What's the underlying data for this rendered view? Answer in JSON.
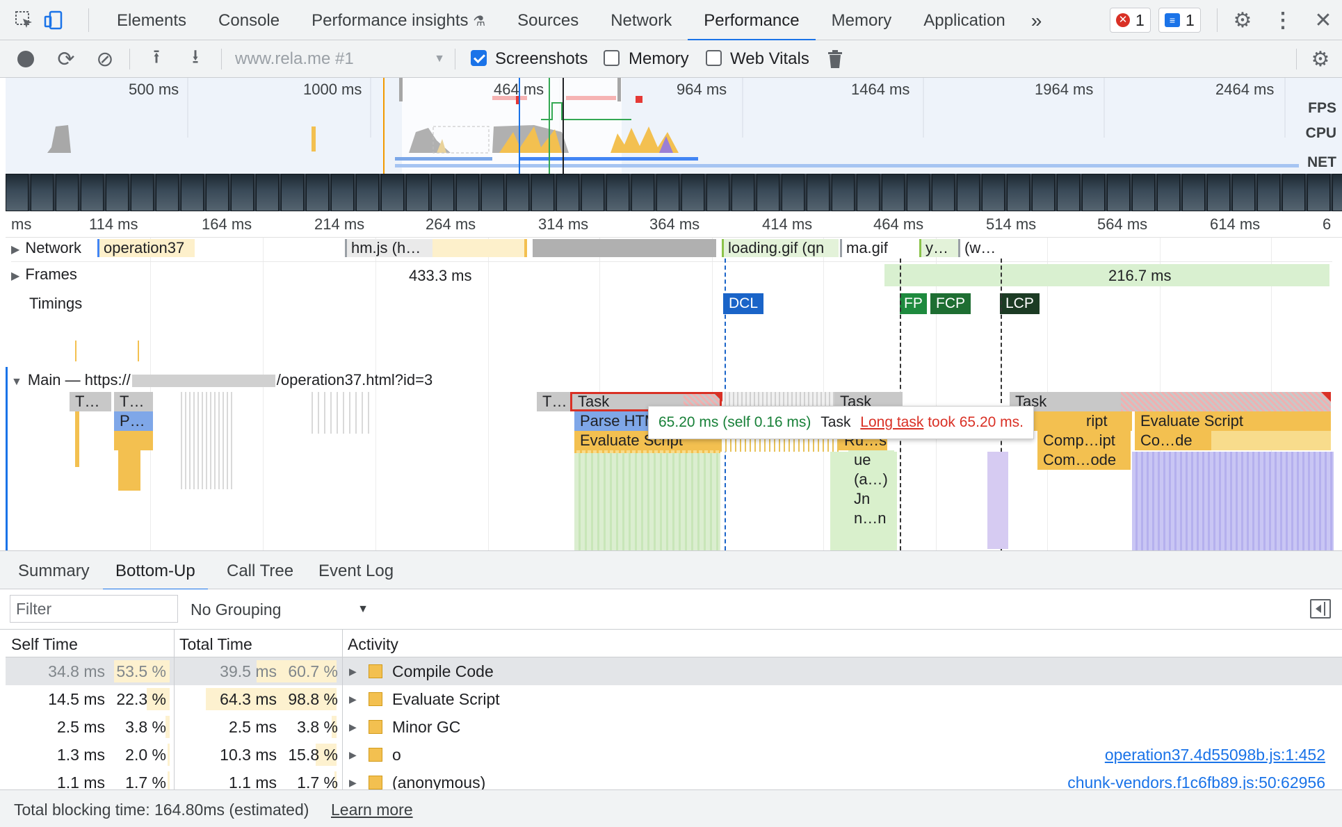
{
  "tabbar": {
    "tabs": [
      "Elements",
      "Console",
      "Performance insights",
      "Sources",
      "Network",
      "Performance",
      "Memory",
      "Application"
    ],
    "active_tab": "Performance",
    "more_label": "»",
    "errors_count": "1",
    "messages_count": "1"
  },
  "toolbar": {
    "recording_select": "www.rela.me #1",
    "screenshots_label": "Screenshots",
    "screenshots_checked": true,
    "memory_label": "Memory",
    "memory_checked": false,
    "webvitals_label": "Web Vitals",
    "webvitals_checked": false
  },
  "overview": {
    "time_labels": [
      "500 ms",
      "1000 ms",
      "464 ms",
      "964 ms",
      "1464 ms",
      "1964 ms",
      "2464 ms"
    ],
    "side_labels": [
      "FPS",
      "CPU",
      "NET"
    ]
  },
  "ruler": {
    "labels": [
      "ms",
      "114 ms",
      "164 ms",
      "214 ms",
      "264 ms",
      "314 ms",
      "364 ms",
      "414 ms",
      "464 ms",
      "514 ms",
      "564 ms",
      "614 ms",
      "6"
    ]
  },
  "tracks": {
    "network_label": "Network",
    "network_items": [
      "operation37",
      "hm.js (h…",
      "loading.gif (qn",
      "ma.gif",
      "y…",
      "(w…"
    ],
    "frames_label": "Frames",
    "frame_durations": [
      "433.3 ms",
      "216.7 ms"
    ],
    "timings_label": "Timings",
    "timing_markers": [
      "DCL",
      "FP",
      "FCP",
      "LCP"
    ],
    "main_prefix": "Main — https://",
    "main_suffix": "/operation37.html?id=3"
  },
  "flame": {
    "labels": [
      "T…",
      "T…",
      "T…",
      "P…",
      "Task",
      "Parse HTML",
      "Evaluate Script",
      "Task",
      "Ru…s",
      "ue",
      "(a…)",
      "Jn",
      "n…n",
      "Task",
      "ript",
      "Evaluate Script",
      "Comp…ipt",
      "Co…de",
      "Com…ode"
    ]
  },
  "tooltip": {
    "duration": "65.20 ms (self 0.16 ms)",
    "name": "Task",
    "link": "Long task",
    "message": "took 65.20 ms."
  },
  "bottom": {
    "tabs": [
      "Summary",
      "Bottom-Up",
      "Call Tree",
      "Event Log"
    ],
    "active_tab": "Bottom-Up",
    "filter_placeholder": "Filter",
    "grouping": "No Grouping",
    "columns": [
      "Self Time",
      "Total Time",
      "Activity"
    ],
    "rows": [
      {
        "self_ms": "34.8 ms",
        "self_pct": "53.5 %",
        "self_frac": 0.535,
        "total_ms": "39.5 ms",
        "total_pct": "60.7 %",
        "total_frac": 0.607,
        "activity": "Compile Code",
        "source": ""
      },
      {
        "self_ms": "14.5 ms",
        "self_pct": "22.3 %",
        "self_frac": 0.223,
        "total_ms": "64.3 ms",
        "total_pct": "98.8 %",
        "total_frac": 0.988,
        "activity": "Evaluate Script",
        "source": ""
      },
      {
        "self_ms": "2.5 ms",
        "self_pct": "3.8 %",
        "self_frac": 0.038,
        "total_ms": "2.5 ms",
        "total_pct": "3.8 %",
        "total_frac": 0.038,
        "activity": "Minor GC",
        "source": ""
      },
      {
        "self_ms": "1.3 ms",
        "self_pct": "2.0 %",
        "self_frac": 0.02,
        "total_ms": "10.3 ms",
        "total_pct": "15.8 %",
        "total_frac": 0.158,
        "activity": "o",
        "source": "operation37.4d55098b.js:1:452"
      },
      {
        "self_ms": "1.1 ms",
        "self_pct": "1.7 %",
        "self_frac": 0.017,
        "total_ms": "1.1 ms",
        "total_pct": "1.7 %",
        "total_frac": 0.017,
        "activity": "(anonymous)",
        "source": "chunk-vendors.f1c6fb89.js:50:62956"
      }
    ]
  },
  "status": {
    "text": "Total blocking time: 164.80ms (estimated)",
    "link": "Learn more"
  },
  "colors": {
    "accent": "#1a73e8",
    "scripting": "#f3c050",
    "parse": "#7fa7e8",
    "task": "#c8c8c8",
    "dcl": "#1a64c8",
    "fp": "#1e8a3e",
    "fcp": "#1e6e32",
    "lcp": "#1c3b24",
    "long_task_red": "#d93025"
  }
}
